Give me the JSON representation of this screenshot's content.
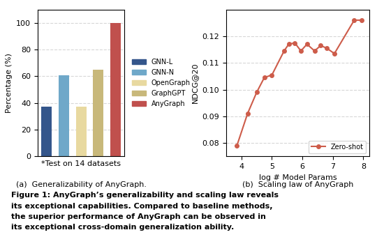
{
  "chart_data": [
    {
      "type": "bar",
      "caption": "(a)  Generalizability of AnyGraph.",
      "x_label": "*Test on 14 datasets",
      "y_label": "Percentage (%)",
      "categories": [
        "GNN-L",
        "GNN-N",
        "OpenGraph",
        "GraphGPT",
        "AnyGraph"
      ],
      "values": [
        37,
        61,
        37,
        65,
        100
      ],
      "colors": [
        "#34568B",
        "#6fa8c9",
        "#e8d9a0",
        "#c8b87a",
        "#c0504d"
      ],
      "ylim": [
        0,
        110
      ],
      "yticks": [
        0,
        20,
        40,
        60,
        80,
        100
      ],
      "grid": true,
      "tick_labels": "y",
      "legend": "right"
    },
    {
      "type": "line",
      "caption": "(b)  Scaling law of AnyGraph",
      "x_label": "log # Model Params",
      "y_label": "NDCG@20",
      "x": [
        3.85,
        4.2,
        4.5,
        4.75,
        5.0,
        5.4,
        5.55,
        5.75,
        5.95,
        6.15,
        6.4,
        6.6,
        6.8,
        7.05,
        7.7,
        7.95
      ],
      "series": [
        {
          "name": "Zero-shot",
          "color": "#cd5c4a",
          "marker": "o",
          "values": [
            0.079,
            0.091,
            0.099,
            0.1045,
            0.1055,
            0.1145,
            0.117,
            0.1175,
            0.1145,
            0.117,
            0.1145,
            0.1165,
            0.1155,
            0.1135,
            0.126,
            0.126
          ]
        }
      ],
      "xlim": [
        3.5,
        8.2
      ],
      "xticks": [
        4,
        5,
        6,
        7,
        8
      ],
      "ylim": [
        0.075,
        0.13
      ],
      "yticks": [
        0.08,
        0.09,
        {
          "value": 0.1,
          "label": "0.10"
        },
        0.11,
        0.12
      ],
      "grid": true,
      "legend": "lower right"
    }
  ],
  "annotations": [
    "Figure 1: AnyGraph’s generalizability and scaling law reveals",
    "its exceptional capabilities. Compared to baseline methods,",
    "the superior performance of AnyGraph can be observed in",
    "its exceptional cross-domain generalization ability."
  ]
}
